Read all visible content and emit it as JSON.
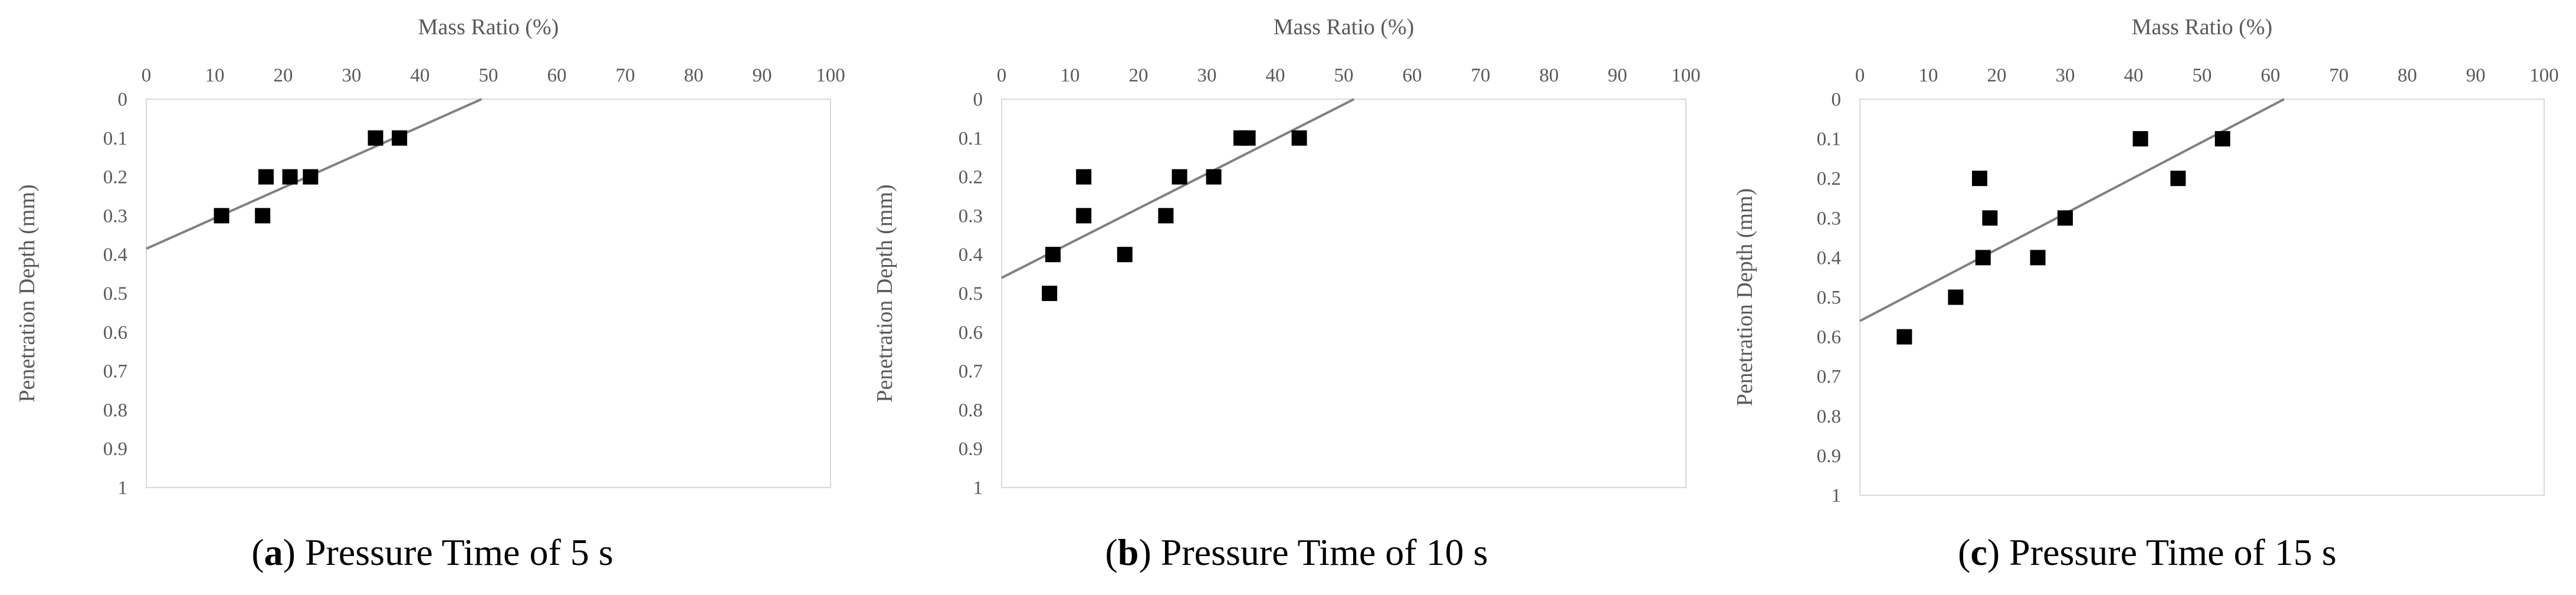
{
  "chart_data": [
    {
      "type": "scatter",
      "panel_letter": "a",
      "caption": "Pressure Time of 5 s",
      "xlabel": "Mass Ratio (%)",
      "ylabel": "Penetration Depth (mm)",
      "xlim": [
        0,
        100
      ],
      "ylim": [
        0,
        1
      ],
      "x_ticks": [
        "0",
        "10",
        "20",
        "30",
        "40",
        "50",
        "60",
        "70",
        "80",
        "90",
        "100"
      ],
      "y_ticks": [
        "0",
        "0.1",
        "0.2",
        "0.3",
        "0.4",
        "0.5",
        "0.6",
        "0.7",
        "0.8",
        "0.9",
        "1"
      ],
      "y_axis_inverted": true,
      "x_axis_position": "top",
      "grid": false,
      "points": [
        {
          "x": 11,
          "y": 0.3
        },
        {
          "x": 17,
          "y": 0.3
        },
        {
          "x": 17.5,
          "y": 0.2
        },
        {
          "x": 21,
          "y": 0.2
        },
        {
          "x": 24,
          "y": 0.2
        },
        {
          "x": 33.5,
          "y": 0.1
        },
        {
          "x": 37,
          "y": 0.1
        }
      ],
      "trendline": {
        "type": "linear",
        "points": [
          {
            "x": 0,
            "y": 0.385
          },
          {
            "x": 49,
            "y": 0
          }
        ]
      }
    },
    {
      "type": "scatter",
      "panel_letter": "b",
      "caption": "Pressure Time of 10 s",
      "xlabel": "Mass Ratio (%)",
      "ylabel": "Penetration Depth (mm)",
      "xlim": [
        0,
        100
      ],
      "ylim": [
        0,
        1
      ],
      "x_ticks": [
        "0",
        "10",
        "20",
        "30",
        "40",
        "50",
        "60",
        "70",
        "80",
        "90",
        "100"
      ],
      "y_ticks": [
        "0",
        "0.1",
        "0.2",
        "0.3",
        "0.4",
        "0.5",
        "0.6",
        "0.7",
        "0.8",
        "0.9",
        "1"
      ],
      "y_axis_inverted": true,
      "x_axis_position": "top",
      "grid": false,
      "points": [
        {
          "x": 7,
          "y": 0.5
        },
        {
          "x": 7.5,
          "y": 0.4
        },
        {
          "x": 12,
          "y": 0.3
        },
        {
          "x": 12,
          "y": 0.2
        },
        {
          "x": 18,
          "y": 0.4
        },
        {
          "x": 24,
          "y": 0.3
        },
        {
          "x": 26,
          "y": 0.2
        },
        {
          "x": 31,
          "y": 0.2
        },
        {
          "x": 35,
          "y": 0.1
        },
        {
          "x": 36,
          "y": 0.1
        },
        {
          "x": 43.5,
          "y": 0.1
        }
      ],
      "trendline": {
        "type": "linear",
        "points": [
          {
            "x": 0,
            "y": 0.46
          },
          {
            "x": 51.5,
            "y": 0
          }
        ]
      }
    },
    {
      "type": "scatter",
      "panel_letter": "c",
      "caption": "Pressure Time of 15 s",
      "xlabel": "Mass Ratio (%)",
      "ylabel": "Penetration Depth (mm)",
      "xlim": [
        0,
        100
      ],
      "ylim": [
        0,
        1
      ],
      "x_ticks": [
        "0",
        "10",
        "20",
        "30",
        "40",
        "50",
        "60",
        "70",
        "80",
        "90",
        "100"
      ],
      "y_ticks": [
        "0",
        "0.1",
        "0.2",
        "0.3",
        "0.4",
        "0.5",
        "0.6",
        "0.7",
        "0.8",
        "0.9",
        "1"
      ],
      "y_axis_inverted": true,
      "x_axis_position": "top",
      "grid": false,
      "points": [
        {
          "x": 6.5,
          "y": 0.6
        },
        {
          "x": 14,
          "y": 0.5
        },
        {
          "x": 18,
          "y": 0.4
        },
        {
          "x": 17.5,
          "y": 0.2
        },
        {
          "x": 19,
          "y": 0.3
        },
        {
          "x": 26,
          "y": 0.4
        },
        {
          "x": 30,
          "y": 0.3
        },
        {
          "x": 41,
          "y": 0.1
        },
        {
          "x": 46.5,
          "y": 0.2
        },
        {
          "x": 53,
          "y": 0.1
        }
      ],
      "trendline": {
        "type": "linear",
        "points": [
          {
            "x": 0,
            "y": 0.56
          },
          {
            "x": 62,
            "y": 0
          }
        ]
      }
    }
  ]
}
